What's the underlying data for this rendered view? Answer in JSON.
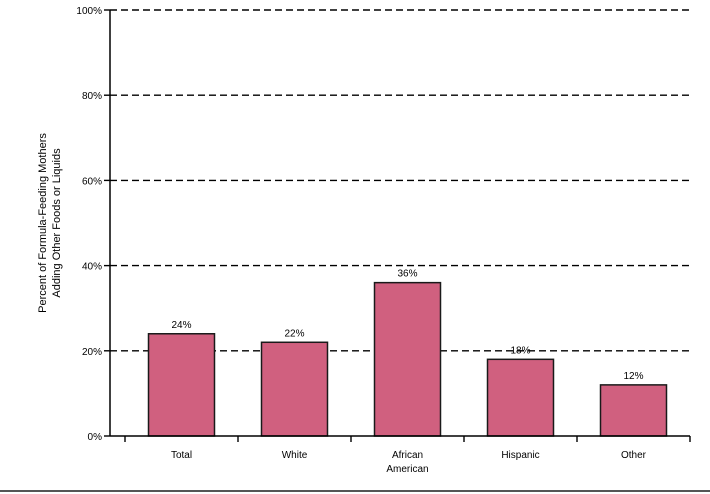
{
  "chart_data": {
    "type": "bar",
    "categories": [
      [
        "Total"
      ],
      [
        "White"
      ],
      [
        "African",
        "American"
      ],
      [
        "Hispanic"
      ],
      [
        "Other"
      ]
    ],
    "values": [
      24,
      22,
      36,
      18,
      12
    ],
    "data_labels": [
      "24%",
      "22%",
      "36%",
      "18%",
      "12%"
    ],
    "ylabel_lines": [
      "Percent of Formula-Feeding Mothers",
      "Adding Other Foods or Liquids"
    ],
    "xlabel": "",
    "ylim": [
      0,
      100
    ],
    "yticks": [
      0,
      20,
      40,
      60,
      80,
      100
    ],
    "ytick_labels": [
      "0%",
      "20%",
      "40%",
      "60%",
      "80%",
      "100%"
    ],
    "gridlines": "dashed",
    "colors": {
      "bar_fill": "#d0607f",
      "bar_stroke": "#1a1a1a",
      "grid": "#000000"
    }
  }
}
